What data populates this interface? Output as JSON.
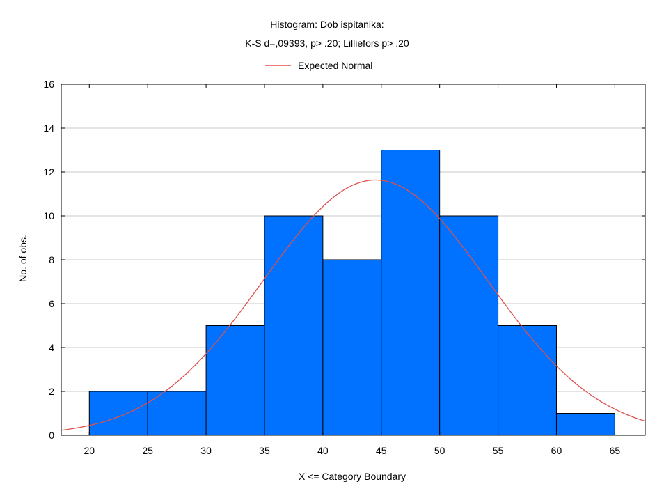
{
  "chart_data": {
    "type": "bar",
    "title": "Histogram: Dob ispitanika:",
    "subtitle": "K-S d=,09393, p> .20; Lilliefors p> .20",
    "legend": {
      "entries": [
        {
          "name": "Expected Normal",
          "color": "#e0504d"
        }
      ],
      "placement": "top-center"
    },
    "xlabel": "X <= Category Boundary",
    "ylabel": "No. of obs.",
    "x_ticks": [
      20,
      25,
      30,
      35,
      40,
      45,
      50,
      55,
      60,
      65
    ],
    "y_ticks": [
      0,
      2,
      4,
      6,
      8,
      10,
      12,
      14,
      16
    ],
    "xlim": [
      17.6,
      67.6
    ],
    "ylim": [
      0,
      16
    ],
    "bin_edges": [
      20,
      25,
      30,
      35,
      40,
      45,
      50,
      55,
      60,
      65
    ],
    "values": [
      2,
      2,
      5,
      10,
      8,
      13,
      10,
      5,
      1
    ],
    "bar_color": "#0072ff",
    "bar_edge_color": "#000000",
    "normal_curve": {
      "mean": 44.5,
      "sd": 9.6,
      "n": 56,
      "bin_width": 5,
      "color": "#e0504d"
    },
    "grid": true
  }
}
